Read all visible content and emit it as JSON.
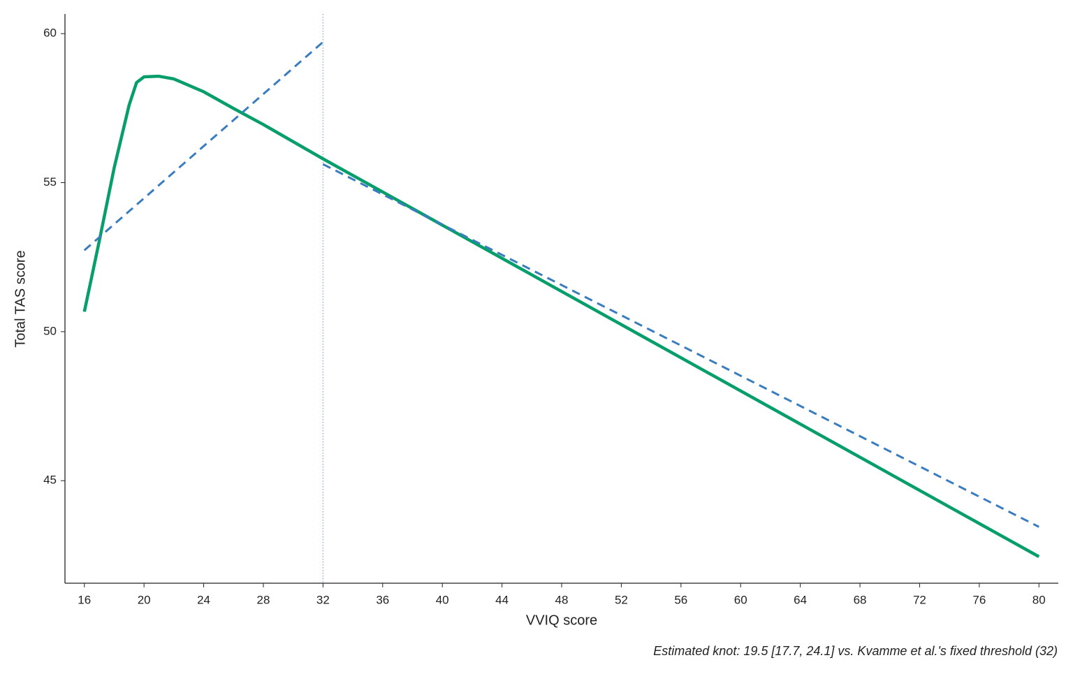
{
  "chart_data": {
    "type": "line",
    "xlabel": "VVIQ score",
    "ylabel": "Total TAS score",
    "note": "Estimated knot: 19.5 [17.7, 24.1] vs. Kvamme et al.'s fixed threshold (32)",
    "xlim": [
      14.7,
      81.3
    ],
    "ylim": [
      41.56,
      60.66
    ],
    "xticks": [
      16,
      20,
      24,
      28,
      32,
      36,
      40,
      44,
      48,
      52,
      56,
      60,
      64,
      68,
      72,
      76,
      80
    ],
    "yticks": [
      45,
      50,
      55,
      60
    ],
    "vline": {
      "x": 32,
      "color": "#7fa9d8",
      "style": "dotted"
    },
    "series": [
      {
        "color": "#089e6c",
        "style": "solid",
        "x": [
          16,
          17,
          18,
          19,
          19.5,
          20,
          21,
          22,
          24,
          26,
          28,
          32,
          80
        ],
        "values": [
          50.67,
          53.04,
          55.5,
          57.6,
          58.36,
          58.55,
          58.57,
          58.48,
          58.05,
          57.49,
          56.95,
          55.8,
          42.45
        ]
      },
      {
        "color": "#3a7dbf",
        "style": "dashed",
        "x": [
          16,
          32,
          null,
          32,
          80
        ],
        "values": [
          52.73,
          59.72,
          null,
          55.62,
          43.45
        ]
      }
    ]
  }
}
